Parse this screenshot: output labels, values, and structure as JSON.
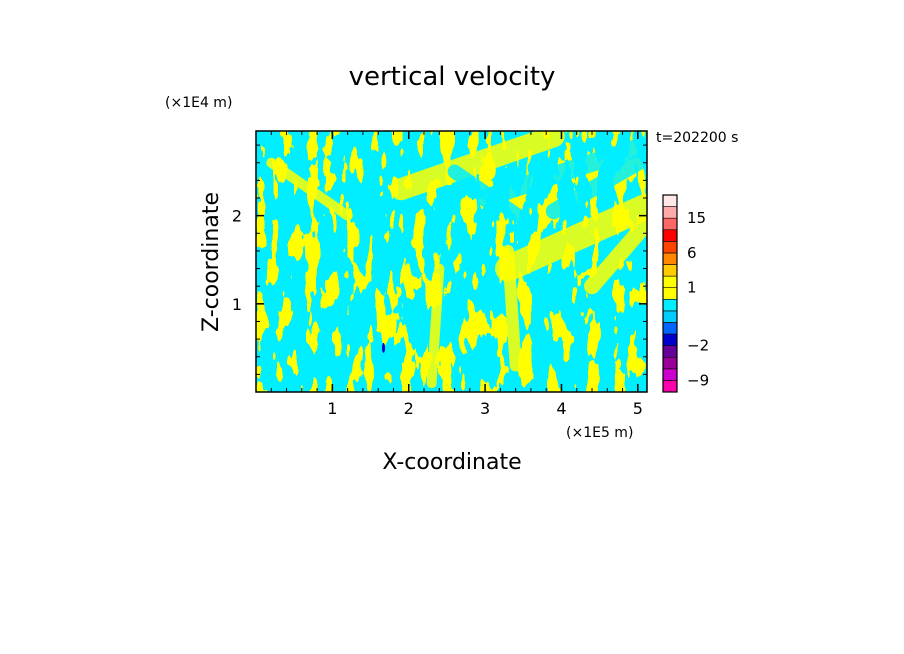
{
  "chart_data": {
    "type": "heatmap",
    "title": "vertical velocity",
    "xlabel": "X-coordinate",
    "ylabel": "Z-coordinate",
    "x_scale_label": "(×1E5 m)",
    "y_scale_label": "(×1E4 m)",
    "time_label": "t=202200 s",
    "xlim": [
      0,
      5.12
    ],
    "ylim": [
      0,
      2.96
    ],
    "x_ticks": [
      1,
      2,
      3,
      4,
      5
    ],
    "y_ticks": [
      1,
      2
    ],
    "x_tick_labels": [
      "1",
      "2",
      "3",
      "4",
      "5"
    ],
    "y_tick_labels": [
      "1",
      "2"
    ],
    "colorbar": {
      "levels": [
        -12,
        -9,
        -6,
        -4,
        -2,
        -1,
        -0.5,
        0,
        0.5,
        1,
        2,
        4,
        6,
        9,
        12,
        15,
        20,
        25
      ],
      "colors": [
        "#ff00aa",
        "#cc00cc",
        "#990099",
        "#660099",
        "#0000cc",
        "#0066ff",
        "#00ccff",
        "#00eeff",
        "#ffff00",
        "#ffff00",
        "#ffcc00",
        "#ff8800",
        "#ff4400",
        "#ff0000",
        "#ff6666",
        "#ffaaaa",
        "#ffe8e8"
      ],
      "tick_values": [
        15,
        6,
        1,
        -2,
        -9
      ],
      "tick_labels": [
        "15",
        "6",
        "1",
        "−2",
        "−9"
      ]
    },
    "field_colors": {
      "positive": "#ffff00",
      "negative": "#00eeff",
      "strong_negative": "#0000cc"
    },
    "grid": false,
    "legend": "right colorbar"
  }
}
